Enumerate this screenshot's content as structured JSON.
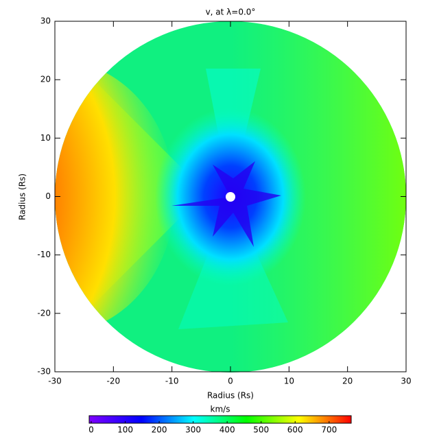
{
  "chart_data": {
    "type": "polar-map",
    "title": "v, at λ=0.0°",
    "x_label": "Radius (Rs)",
    "y_label": "Radius (Rs)",
    "xlim": [
      -30,
      30
    ],
    "ylim": [
      -30,
      30
    ],
    "xticks": [
      -30,
      -20,
      -10,
      0,
      10,
      20,
      30
    ],
    "yticks": [
      -30,
      -20,
      -10,
      0,
      10,
      20,
      30
    ],
    "colorbar": {
      "label": "km/s",
      "lim": [
        -6,
        765
      ],
      "ticks": [
        0,
        100,
        200,
        300,
        400,
        500,
        600,
        700
      ],
      "colors": [
        "#7f00ff",
        "#0000ff",
        "#00ffff",
        "#00ff00",
        "#ffff00",
        "#ff0000"
      ]
    }
  }
}
